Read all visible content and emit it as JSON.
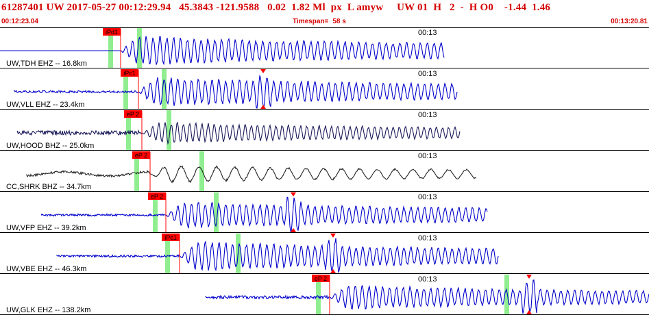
{
  "header": {
    "summary": "61287401 UW 2017-05-27 00:12:29.94   45.3843 -121.9588   0.02  1.82 Ml  px  L amyw     UW 01  H   2  -  H O0    -1.44  1.46",
    "start_time": "00:12:23.04",
    "timespan_label": "Timespan=",
    "timespan_value": "58 s",
    "end_time": "00:13:20.81"
  },
  "colors": {
    "header_text": "#d40000",
    "pick_flag": "#ff0000",
    "pick_window": "#90ee90",
    "trace_blue": "#0000cc",
    "trace_dark": "#1a1a5a",
    "trace_black": "#222222"
  },
  "channels": [
    {
      "label": "UW,TDH EHZ -- 16.8km",
      "time_label": "00:13",
      "pick": "iPd1",
      "color": "#0000cc"
    },
    {
      "label": "UW,VLL EHZ -- 23.4km",
      "time_label": "00:13",
      "pick": "iPc1",
      "color": "#0000cc"
    },
    {
      "label": "UW,HOOD BHZ -- 25.0km",
      "time_label": "00:13",
      "pick": "eP 2",
      "color": "#1a1a5a"
    },
    {
      "label": "CC,SHRK BHZ -- 34.7km",
      "time_label": "00:13",
      "pick": "eP 2",
      "color": "#222222"
    },
    {
      "label": "UW,VFP EHZ -- 39.2km",
      "time_label": "00:13",
      "pick": "eP 2",
      "color": "#0000cc"
    },
    {
      "label": "UW,VBE EHZ -- 46.3km",
      "time_label": "00:13",
      "pick": "iPc1",
      "color": "#0000cc"
    },
    {
      "label": "UW,GLK EHZ -- 138.2km",
      "time_label": "00:13",
      "pick": "eP 2",
      "color": "#0000cc"
    }
  ]
}
